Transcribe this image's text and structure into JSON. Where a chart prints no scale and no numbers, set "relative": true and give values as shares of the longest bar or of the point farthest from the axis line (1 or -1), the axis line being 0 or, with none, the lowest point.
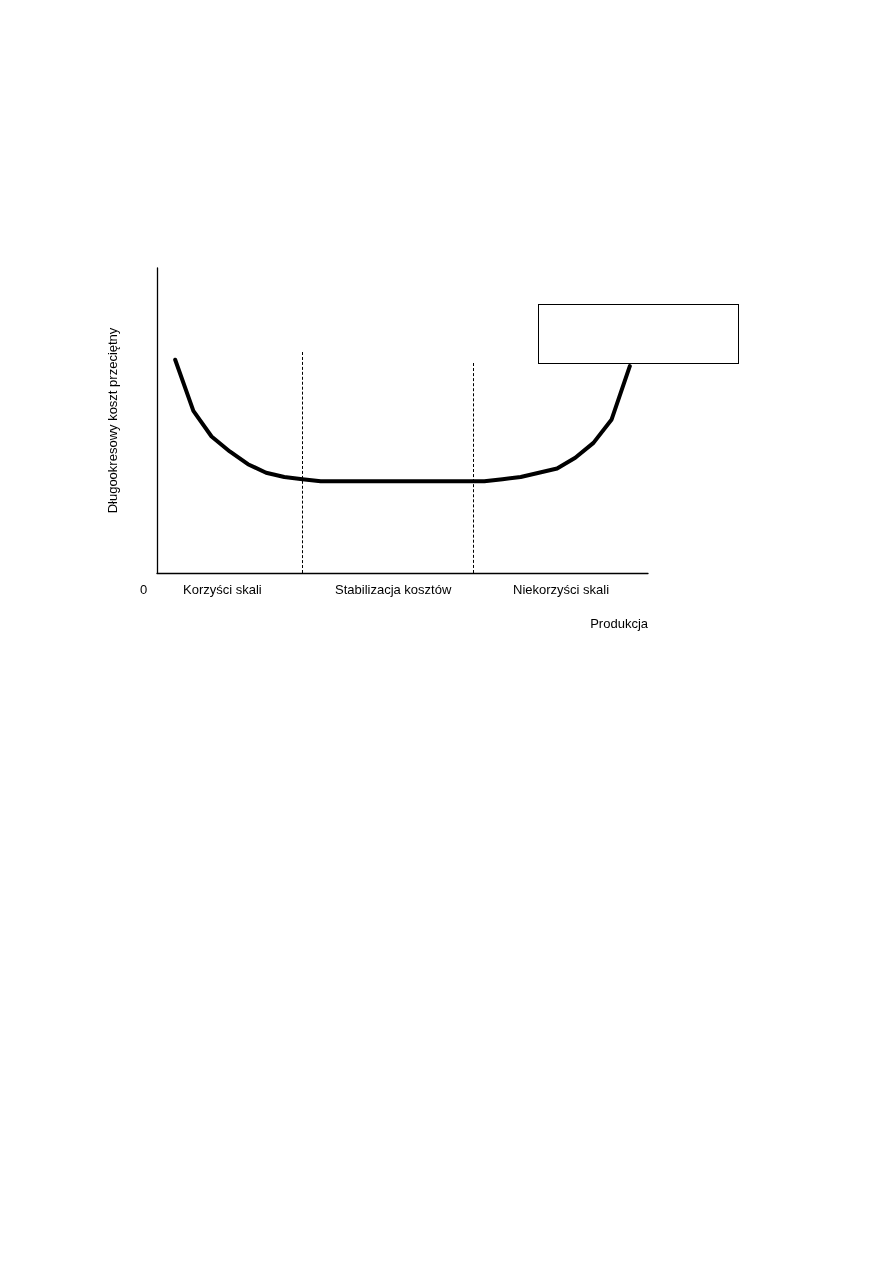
{
  "chart_data": {
    "type": "line",
    "relative": true,
    "xlabel": "Produkcja",
    "ylabel": "Długookresowy koszt przeciętny",
    "categories": [
      null,
      null,
      null,
      null,
      null,
      null,
      null,
      null,
      null,
      null,
      null,
      null,
      null,
      null,
      null,
      null,
      null,
      null,
      null,
      null,
      null,
      null,
      null,
      null,
      null,
      null,
      null,
      null
    ],
    "series": [
      {
        "color": "#000000",
        "values": [
          null,
          1.0,
          0.76,
          0.64,
          0.57,
          0.51,
          0.47,
          0.45,
          0.44,
          0.43,
          0.43,
          0.43,
          0.43,
          0.43,
          0.43,
          0.43,
          0.43,
          0.43,
          0.43,
          0.44,
          0.45,
          0.47,
          0.49,
          0.54,
          0.61,
          0.72,
          0.97,
          null
        ]
      }
    ],
    "annotations": [
      "0",
      "Korzyści skali",
      "Stabilizacja kosztów",
      "Niekorzyści skali"
    ],
    "marker": "none",
    "line_style": "solid"
  }
}
